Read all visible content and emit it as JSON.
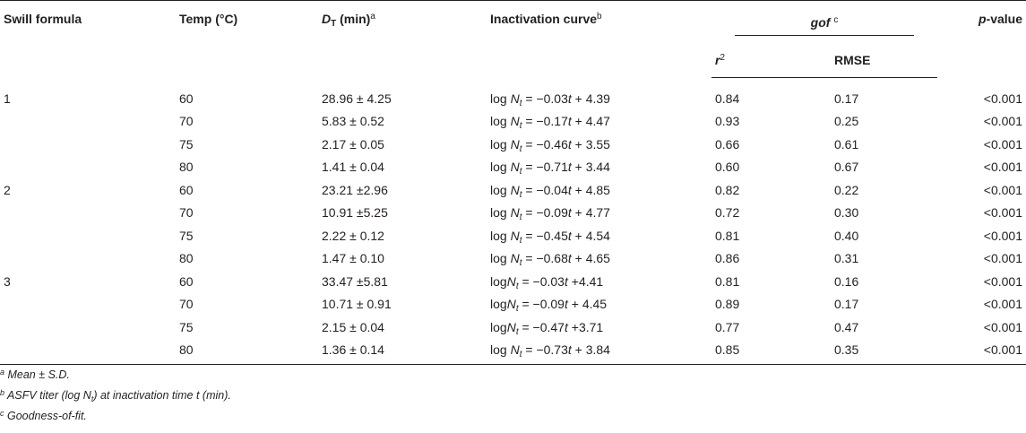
{
  "headers": {
    "swill_formula": "Swill formula",
    "temp": "Temp (°C)",
    "dt_main": "D",
    "dt_sub": "T",
    "dt_unit": " (min)",
    "dt_note": "a",
    "curve": "Inactivation curve",
    "curve_note": "b",
    "gof": "gof",
    "gof_note": "c",
    "r2_base": "r",
    "r2_exp": "2",
    "rmse": "RMSE",
    "p_it": "p",
    "p_rest": "-value"
  },
  "rows": [
    {
      "formula": "1",
      "temp": "60",
      "dt": "28.96 ± 4.25",
      "eq_pre": "log ",
      "eq_mid": " = −0.03",
      "eq_post": " + 4.39",
      "r2": "0.84",
      "rmse": "0.17",
      "p": "<0.001"
    },
    {
      "formula": "",
      "temp": "70",
      "dt": "5.83 ± 0.52",
      "eq_pre": "log ",
      "eq_mid": " = −0.17",
      "eq_post": " + 4.47",
      "r2": "0.93",
      "rmse": "0.25",
      "p": "<0.001"
    },
    {
      "formula": "",
      "temp": "75",
      "dt": "2.17 ± 0.05",
      "eq_pre": "log ",
      "eq_mid": " = −0.46",
      "eq_post": " + 3.55",
      "r2": "0.66",
      "rmse": "0.61",
      "p": "<0.001"
    },
    {
      "formula": "",
      "temp": "80",
      "dt": "1.41 ± 0.04",
      "eq_pre": "log ",
      "eq_mid": " = −0.71",
      "eq_post": " + 3.44",
      "r2": "0.60",
      "rmse": "0.67",
      "p": "<0.001"
    },
    {
      "formula": "2",
      "temp": "60",
      "dt": "23.21 ±2.96",
      "eq_pre": "log ",
      "eq_mid": " = −0.04",
      "eq_post": " + 4.85",
      "r2": "0.82",
      "rmse": "0.22",
      "p": "<0.001"
    },
    {
      "formula": "",
      "temp": "70",
      "dt": "10.91 ±5.25",
      "eq_pre": "log ",
      "eq_mid": " = −0.09",
      "eq_post": " + 4.77",
      "r2": "0.72",
      "rmse": "0.30",
      "p": "<0.001"
    },
    {
      "formula": "",
      "temp": "75",
      "dt": "2.22 ± 0.12",
      "eq_pre": "log ",
      "eq_mid": " = −0.45",
      "eq_post": " + 4.54",
      "r2": "0.81",
      "rmse": "0.40",
      "p": "<0.001"
    },
    {
      "formula": "",
      "temp": "80",
      "dt": "1.47 ± 0.10",
      "eq_pre": "log ",
      "eq_mid": " = −0.68",
      "eq_post": " + 4.65",
      "r2": "0.86",
      "rmse": "0.31",
      "p": "<0.001"
    },
    {
      "formula": "3",
      "temp": "60",
      "dt": "33.47 ±5.81",
      "eq_pre": "log",
      "eq_mid": " = −0.03",
      "eq_post": " +4.41",
      "r2": "0.81",
      "rmse": "0.16",
      "p": "<0.001"
    },
    {
      "formula": "",
      "temp": "70",
      "dt": "10.71 ± 0.91",
      "eq_pre": "log",
      "eq_mid": " = −0.09",
      "eq_post": " + 4.45",
      "r2": "0.89",
      "rmse": "0.17",
      "p": "<0.001"
    },
    {
      "formula": "",
      "temp": "75",
      "dt": "2.15 ± 0.04",
      "eq_pre": "log",
      "eq_mid": " = −0.47",
      "eq_post": " +3.71",
      "r2": "0.77",
      "rmse": "0.47",
      "p": "<0.001"
    },
    {
      "formula": "",
      "temp": "80",
      "dt": "1.36 ± 0.14",
      "eq_pre": "log ",
      "eq_mid": " = −0.73",
      "eq_post": " + 3.84",
      "r2": "0.85",
      "rmse": "0.35",
      "p": "<0.001"
    }
  ],
  "eq_var": "N",
  "eq_sub": "t",
  "eq_time": "t",
  "footnotes": [
    {
      "mark": "a",
      "text_pre": " Mean ± S.D.",
      "sub": "",
      "text_post": ""
    },
    {
      "mark": "b",
      "text_pre": " ASFV titer (log N",
      "sub": "t",
      "text_post": ") at inactivation time t (min)."
    },
    {
      "mark": "c",
      "text_pre": " Goodness-of-fit.",
      "sub": "",
      "text_post": ""
    }
  ]
}
